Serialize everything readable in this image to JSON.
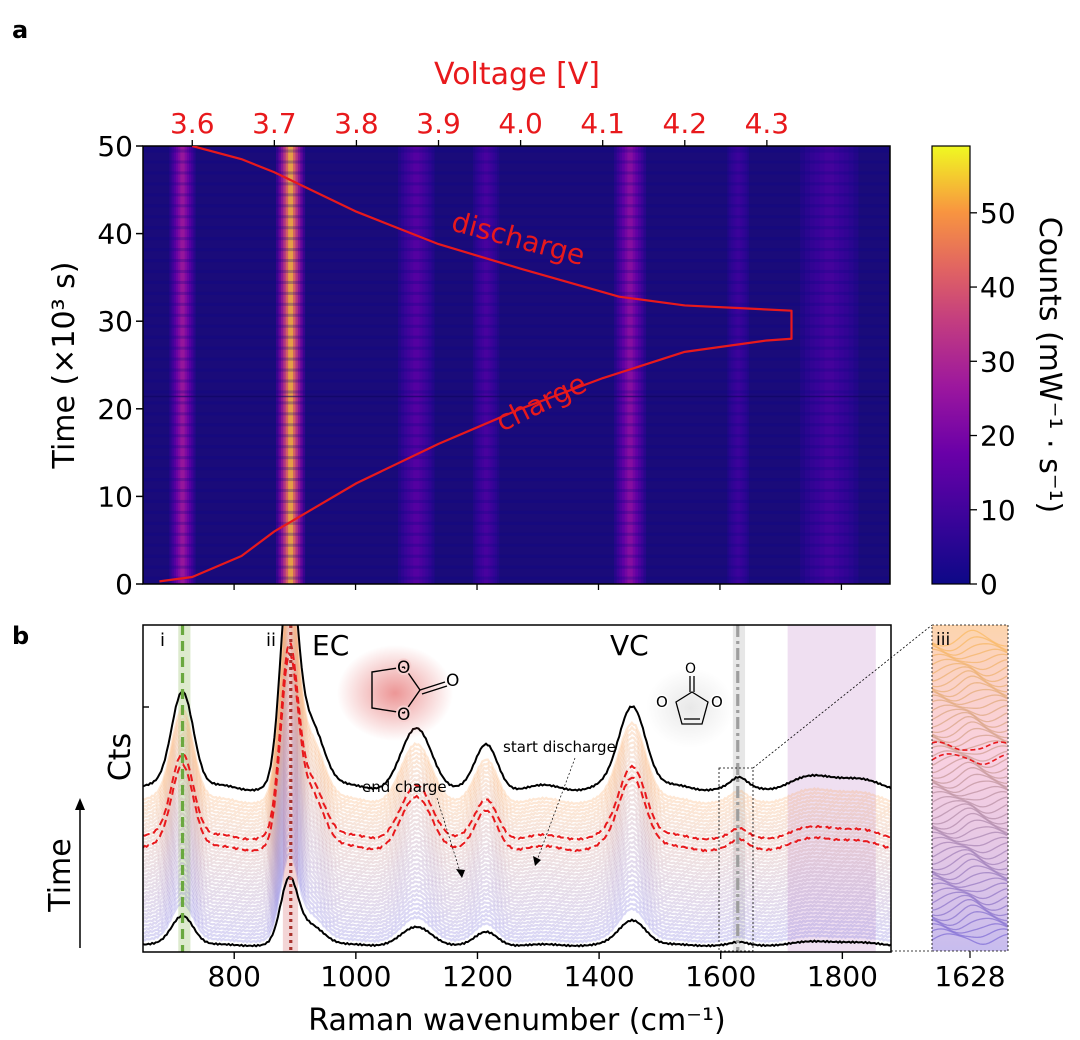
{
  "panel_a": {
    "letter": "a",
    "top_axis_label": "Voltage [V]",
    "left_axis_label": "Time (×10³ s)",
    "colorbar_label": "Counts (mW⁻¹ · s⁻¹)",
    "curve_labels": {
      "discharge": "discharge",
      "charge": "charge"
    },
    "colors": {
      "voltage_curve": "#e8191c",
      "background": "#1a0b7a",
      "peak": "#ffe14a"
    }
  },
  "panel_b": {
    "letter": "b",
    "x_axis_label": "Raman wavenumber (cm⁻¹)",
    "y_axis_label": "Cts",
    "time_label": "Time",
    "roman_labels": {
      "i": "i",
      "ii": "ii",
      "iii": "iii"
    },
    "molecules": {
      "ec": "EC",
      "vc": "VC"
    },
    "atoms": {
      "o": "O"
    },
    "annotations": {
      "end_charge": "end charge",
      "start_discharge": "start discharge"
    },
    "inset_tick": "1628"
  },
  "chart_data": [
    {
      "type": "heatmap",
      "title": "",
      "xlabel_top": "Voltage [V]",
      "ylabel": "Time (×10³ s)",
      "colorbar_label": "Counts (mW⁻¹ · s⁻¹)",
      "x_axis": {
        "variable": "Raman wavenumber (cm⁻¹)",
        "range": [
          650,
          1880
        ],
        "ticks": [
          800,
          1000,
          1200,
          1400,
          1600,
          1800
        ],
        "tick_labels_shown": false
      },
      "top_axis": {
        "ticks": [
          3.6,
          3.7,
          3.8,
          3.9,
          4.0,
          4.1,
          4.2,
          4.3
        ],
        "tick_labels": [
          "3.6",
          "3.7",
          "3.8",
          "3.9",
          "4.0",
          "4.1",
          "4.2",
          "4.3"
        ],
        "range": [
          3.54,
          4.45
        ]
      },
      "y_axis": {
        "range": [
          0,
          50
        ],
        "ticks": [
          0,
          10,
          20,
          30,
          40,
          50
        ],
        "tick_labels": [
          "0",
          "10",
          "20",
          "30",
          "40",
          "50"
        ]
      },
      "colorbar": {
        "range": [
          0,
          59
        ],
        "ticks": [
          0,
          10,
          20,
          30,
          40,
          50
        ],
        "tick_labels": [
          "0",
          "10",
          "20",
          "30",
          "40",
          "50"
        ],
        "colormap": "plasma"
      },
      "bands": [
        {
          "wavenumber": 715,
          "peak_counts": 28,
          "width": 18
        },
        {
          "wavenumber": 893,
          "peak_counts": 59,
          "width": 20
        },
        {
          "wavenumber": 1100,
          "peak_counts": 12,
          "width": 25
        },
        {
          "wavenumber": 1215,
          "peak_counts": 9,
          "width": 18
        },
        {
          "wavenumber": 1452,
          "peak_counts": 24,
          "width": 22
        },
        {
          "wavenumber": 1630,
          "peak_counts": 6,
          "width": 15
        },
        {
          "wavenumber": 1780,
          "peak_counts": 8,
          "width": 40
        }
      ],
      "voltage_curve": {
        "charge": {
          "voltage": [
            3.56,
            3.6,
            3.66,
            3.7,
            3.8,
            3.9,
            4.0,
            4.1,
            4.2,
            4.3,
            4.33
          ],
          "time": [
            0.3,
            0.8,
            3.2,
            6,
            11.5,
            16,
            20,
            23.5,
            26.5,
            27.8,
            28
          ]
        },
        "hold": {
          "voltage": [
            4.33,
            4.33
          ],
          "time": [
            28,
            31.2
          ]
        },
        "discharge": {
          "voltage": [
            4.33,
            4.2,
            4.12,
            4.0,
            3.9,
            3.8,
            3.7,
            3.66,
            3.6
          ],
          "time": [
            31.2,
            31.8,
            32.8,
            36,
            38.8,
            42.5,
            47,
            48.5,
            50
          ]
        },
        "labels": [
          "charge",
          "discharge"
        ]
      }
    },
    {
      "type": "line",
      "title": "",
      "xlabel": "Raman wavenumber (cm⁻¹)",
      "ylabel": "Cts",
      "xlim": [
        650,
        1880
      ],
      "x_ticks": [
        800,
        1000,
        1200,
        1400,
        1600,
        1800
      ],
      "x_tick_labels": [
        "800",
        "1000",
        "1200",
        "1400",
        "1600",
        "1800"
      ],
      "series": [
        {
          "role": "first spectrum",
          "color": "#000000",
          "style": "solid",
          "offset": 0.0,
          "scale": 0.35
        },
        {
          "role": "end charge",
          "color": "#e8191c",
          "style": "dashed",
          "offset": 0.43,
          "scale": 1.0
        },
        {
          "role": "start discharge",
          "color": "#e8191c",
          "style": "dashed",
          "offset": 0.48,
          "scale": 1.0
        },
        {
          "role": "last spectrum",
          "color": "#000000",
          "style": "solid",
          "offset": 0.7,
          "scale": 1.15
        }
      ],
      "spectrum_peaks": [
        {
          "center": 715,
          "height": 0.38,
          "width": 18
        },
        {
          "center": 890,
          "height": 0.78,
          "width": 14
        },
        {
          "center": 925,
          "height": 0.26,
          "width": 22
        },
        {
          "center": 1100,
          "height": 0.22,
          "width": 25
        },
        {
          "center": 1215,
          "height": 0.16,
          "width": 18
        },
        {
          "center": 1455,
          "height": 0.32,
          "width": 22
        },
        {
          "center": 1630,
          "height": 0.03,
          "width": 12
        },
        {
          "center": 1780,
          "height": 0.05,
          "width": 45
        }
      ],
      "markers": [
        {
          "label": "i",
          "wavenumber": 715,
          "style": "dashed",
          "color": "#6aa83f"
        },
        {
          "label": "ii",
          "wavenumber": 893,
          "style": "dotted",
          "color": "#a8322d"
        },
        {
          "label": "VC",
          "wavenumber": 1628,
          "style": "dashdot",
          "color": "#9e9e9e"
        }
      ],
      "shaded_regions": [
        {
          "from": 708,
          "to": 728,
          "color": "#d9e8c9"
        },
        {
          "from": 880,
          "to": 905,
          "color": "#f2d0d2"
        },
        {
          "from": 1620,
          "to": 1640,
          "color": "#e4e4e4"
        },
        {
          "from": 1710,
          "to": 1855,
          "color": "#eddcef"
        }
      ],
      "annotations": [
        "end charge",
        "start discharge"
      ],
      "inset": {
        "label": "iii",
        "tick": "1628"
      }
    }
  ]
}
